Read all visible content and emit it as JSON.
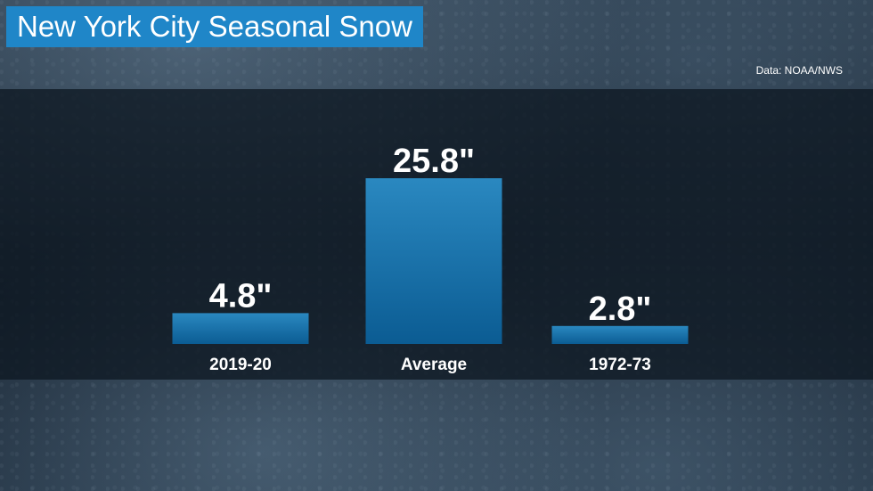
{
  "header": {
    "title": "New York City Seasonal Snow"
  },
  "source": {
    "text": "Data: NOAA/NWS"
  },
  "colors": {
    "title_bg": "#1f86c8",
    "bar_top": "#2a88c0",
    "bar_bottom": "#0b5c93"
  },
  "chart_data": {
    "type": "bar",
    "categories": [
      "2019-20",
      "Average",
      "1972-73"
    ],
    "values": [
      4.8,
      25.8,
      2.8
    ],
    "value_labels": [
      "4.8\"",
      "25.8\"",
      "2.8\""
    ],
    "unit": "\"",
    "ylim": [
      0,
      25.8
    ],
    "grid": false
  }
}
